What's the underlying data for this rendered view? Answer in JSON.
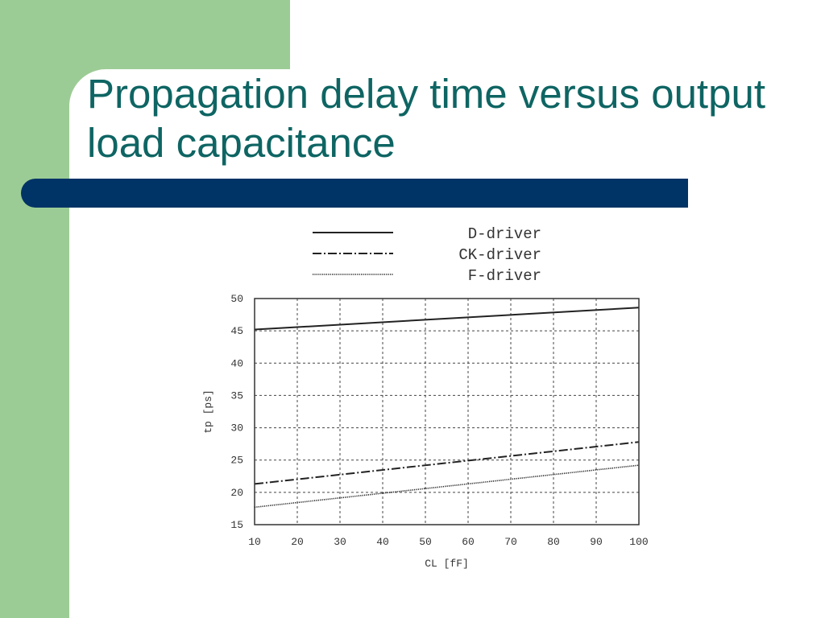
{
  "slide": {
    "title": "Propagation delay time versus output load capacitance",
    "colors": {
      "title": "#0e6563",
      "bar": "#003366",
      "green": "#9ccc95",
      "background": "#ffffff"
    }
  },
  "chart_data": {
    "type": "line",
    "xlabel": "CL [fF]",
    "ylabel": "tp [ps]",
    "xlim": [
      10,
      100
    ],
    "ylim": [
      15,
      50
    ],
    "xticks": [
      10,
      20,
      30,
      40,
      50,
      60,
      70,
      80,
      90,
      100
    ],
    "yticks": [
      15,
      20,
      25,
      30,
      35,
      40,
      45,
      50
    ],
    "grid": true,
    "legend_position": "top",
    "x": [
      10,
      100
    ],
    "series": [
      {
        "name": "D-driver",
        "style": "solid",
        "values": [
          45.2,
          48.6
        ]
      },
      {
        "name": "CK-driver",
        "style": "dash-dot",
        "values": [
          21.3,
          27.8
        ]
      },
      {
        "name": "F-driver",
        "style": "dotted",
        "values": [
          17.7,
          24.2
        ]
      }
    ]
  }
}
